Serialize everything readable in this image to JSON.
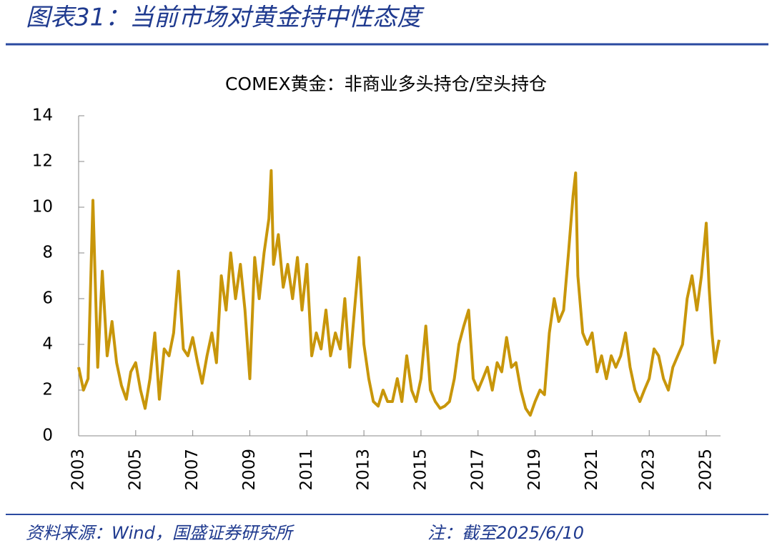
{
  "header": {
    "title": "图表31：当前市场对黄金持中性态度"
  },
  "footer": {
    "source": "资料来源：Wind，国盛证券研究所",
    "note": "注：截至2025/6/10"
  },
  "chart_data": {
    "type": "line",
    "title": "COMEX黄金：非商业多头持仓/空头持仓",
    "color": "#c8960a",
    "x": [
      2003.0,
      2003.17,
      2003.33,
      2003.5,
      2003.67,
      2003.83,
      2004.0,
      2004.17,
      2004.33,
      2004.5,
      2004.67,
      2004.83,
      2005.0,
      2005.17,
      2005.33,
      2005.5,
      2005.67,
      2005.83,
      2006.0,
      2006.17,
      2006.33,
      2006.5,
      2006.67,
      2006.83,
      2007.0,
      2007.17,
      2007.33,
      2007.5,
      2007.67,
      2007.83,
      2008.0,
      2008.17,
      2008.33,
      2008.5,
      2008.67,
      2008.83,
      2009.0,
      2009.17,
      2009.33,
      2009.5,
      2009.67,
      2009.75,
      2009.83,
      2010.0,
      2010.17,
      2010.33,
      2010.5,
      2010.67,
      2010.83,
      2011.0,
      2011.17,
      2011.33,
      2011.5,
      2011.67,
      2011.83,
      2012.0,
      2012.17,
      2012.33,
      2012.5,
      2012.67,
      2012.83,
      2013.0,
      2013.17,
      2013.33,
      2013.5,
      2013.67,
      2013.83,
      2014.0,
      2014.17,
      2014.33,
      2014.5,
      2014.67,
      2014.83,
      2015.0,
      2015.17,
      2015.33,
      2015.5,
      2015.67,
      2015.83,
      2016.0,
      2016.17,
      2016.33,
      2016.5,
      2016.67,
      2016.83,
      2017.0,
      2017.17,
      2017.33,
      2017.5,
      2017.67,
      2017.83,
      2018.0,
      2018.17,
      2018.33,
      2018.5,
      2018.67,
      2018.83,
      2019.0,
      2019.17,
      2019.33,
      2019.5,
      2019.67,
      2019.83,
      2020.0,
      2020.17,
      2020.33,
      2020.42,
      2020.5,
      2020.67,
      2020.83,
      2021.0,
      2021.17,
      2021.33,
      2021.5,
      2021.67,
      2021.83,
      2022.0,
      2022.17,
      2022.33,
      2022.5,
      2022.67,
      2022.83,
      2023.0,
      2023.17,
      2023.33,
      2023.5,
      2023.67,
      2023.83,
      2024.0,
      2024.17,
      2024.33,
      2024.5,
      2024.67,
      2024.83,
      2025.0,
      2025.1,
      2025.2,
      2025.3,
      2025.45
    ],
    "values": [
      3.0,
      2.0,
      2.5,
      10.3,
      3.0,
      7.2,
      3.5,
      5.0,
      3.2,
      2.2,
      1.6,
      2.8,
      3.2,
      2.0,
      1.2,
      2.5,
      4.5,
      1.6,
      3.8,
      3.5,
      4.5,
      7.2,
      3.8,
      3.5,
      4.3,
      3.2,
      2.3,
      3.5,
      4.5,
      3.2,
      7.0,
      5.5,
      8.0,
      6.0,
      7.5,
      5.5,
      2.5,
      7.8,
      6.0,
      8.0,
      9.5,
      11.6,
      7.5,
      8.8,
      6.5,
      7.5,
      6.0,
      7.8,
      5.5,
      7.5,
      3.5,
      4.5,
      3.8,
      5.5,
      3.5,
      4.5,
      3.8,
      6.0,
      3.0,
      5.5,
      7.8,
      4.0,
      2.5,
      1.5,
      1.3,
      2.0,
      1.5,
      1.5,
      2.5,
      1.5,
      3.5,
      2.0,
      1.5,
      2.5,
      4.8,
      2.0,
      1.5,
      1.2,
      1.3,
      1.5,
      2.5,
      4.0,
      4.8,
      5.5,
      2.5,
      2.0,
      2.5,
      3.0,
      2.0,
      3.2,
      2.8,
      4.3,
      3.0,
      3.2,
      2.0,
      1.2,
      0.9,
      1.5,
      2.0,
      1.8,
      4.5,
      6.0,
      5.0,
      5.5,
      8.0,
      10.5,
      11.5,
      7.0,
      4.5,
      4.0,
      4.5,
      2.8,
      3.5,
      2.5,
      3.5,
      3.0,
      3.5,
      4.5,
      3.0,
      2.0,
      1.5,
      2.0,
      2.5,
      3.8,
      3.5,
      2.5,
      2.0,
      3.0,
      3.5,
      4.0,
      6.0,
      7.0,
      5.5,
      7.0,
      9.3,
      6.5,
      4.5,
      3.2,
      4.2
    ],
    "xlim": [
      2003,
      2025.5
    ],
    "xticks": [
      2003,
      2005,
      2007,
      2009,
      2011,
      2013,
      2015,
      2017,
      2019,
      2021,
      2023,
      2025
    ],
    "ylim": [
      0,
      14
    ],
    "yticks": [
      0,
      2,
      4,
      6,
      8,
      10,
      12,
      14
    ]
  }
}
